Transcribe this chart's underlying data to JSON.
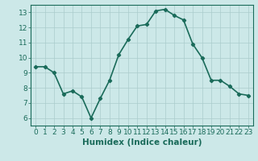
{
  "x": [
    0,
    1,
    2,
    3,
    4,
    5,
    6,
    7,
    8,
    9,
    10,
    11,
    12,
    13,
    14,
    15,
    16,
    17,
    18,
    19,
    20,
    21,
    22,
    23
  ],
  "y": [
    9.4,
    9.4,
    9.0,
    7.6,
    7.8,
    7.4,
    6.0,
    7.3,
    8.5,
    10.2,
    11.2,
    12.1,
    12.2,
    13.1,
    13.2,
    12.8,
    12.5,
    10.9,
    10.0,
    8.5,
    8.5,
    8.1,
    7.6,
    7.5
  ],
  "line_color": "#1a6b5a",
  "marker": "D",
  "marker_size": 2.2,
  "bg_color": "#cce8e8",
  "grid_color": "#aacccc",
  "xlabel": "Humidex (Indice chaleur)",
  "xlabel_fontsize": 7.5,
  "xlim": [
    -0.5,
    23.5
  ],
  "ylim": [
    5.5,
    13.5
  ],
  "yticks": [
    6,
    7,
    8,
    9,
    10,
    11,
    12,
    13
  ],
  "xticks": [
    0,
    1,
    2,
    3,
    4,
    5,
    6,
    7,
    8,
    9,
    10,
    11,
    12,
    13,
    14,
    15,
    16,
    17,
    18,
    19,
    20,
    21,
    22,
    23
  ],
  "tick_fontsize": 6.5,
  "line_width": 1.2
}
